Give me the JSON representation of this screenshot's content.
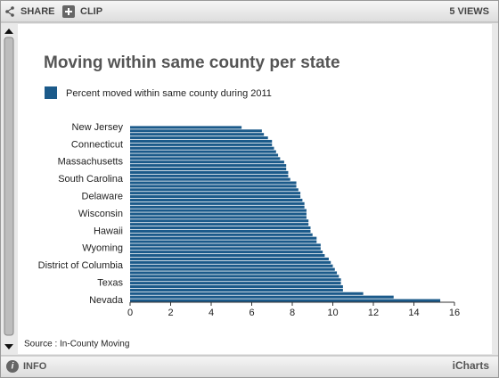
{
  "toolbar": {
    "share": "SHARE",
    "clip": "CLIP",
    "views": "5 VIEWS"
  },
  "footer": {
    "info": "INFO",
    "brand": "iCharts"
  },
  "chart_data": {
    "type": "hbar",
    "title": "Moving within same county per state",
    "source": "Source : In-County Moving",
    "series": [
      {
        "name": "Percent moved within same county during 2011",
        "color": "#1b5a8a",
        "values": [
          5.5,
          6.5,
          6.6,
          6.8,
          7.0,
          7.0,
          7.1,
          7.2,
          7.3,
          7.4,
          7.6,
          7.7,
          7.7,
          7.8,
          7.8,
          7.9,
          8.2,
          8.2,
          8.3,
          8.4,
          8.4,
          8.5,
          8.6,
          8.6,
          8.7,
          8.7,
          8.7,
          8.8,
          8.8,
          8.9,
          8.9,
          9.0,
          9.2,
          9.2,
          9.4,
          9.4,
          9.5,
          9.6,
          9.8,
          9.9,
          10.0,
          10.1,
          10.2,
          10.3,
          10.4,
          10.4,
          10.5,
          10.5,
          11.5,
          13.0,
          15.3
        ]
      }
    ],
    "categories": [
      "New Jersey",
      null,
      null,
      null,
      null,
      "Connecticut",
      null,
      null,
      null,
      null,
      "Massachusetts",
      null,
      null,
      null,
      null,
      "South Carolina",
      null,
      null,
      null,
      null,
      "Delaware",
      null,
      null,
      null,
      null,
      "Wisconsin",
      null,
      null,
      null,
      null,
      "Hawaii",
      null,
      null,
      null,
      null,
      "Wyoming",
      null,
      null,
      null,
      null,
      "District of Columbia",
      null,
      null,
      null,
      null,
      "Texas",
      null,
      null,
      null,
      null,
      "Nevada"
    ],
    "xlim": [
      0,
      16
    ],
    "xticks": [
      0,
      2,
      4,
      6,
      8,
      10,
      12,
      14,
      16
    ]
  }
}
